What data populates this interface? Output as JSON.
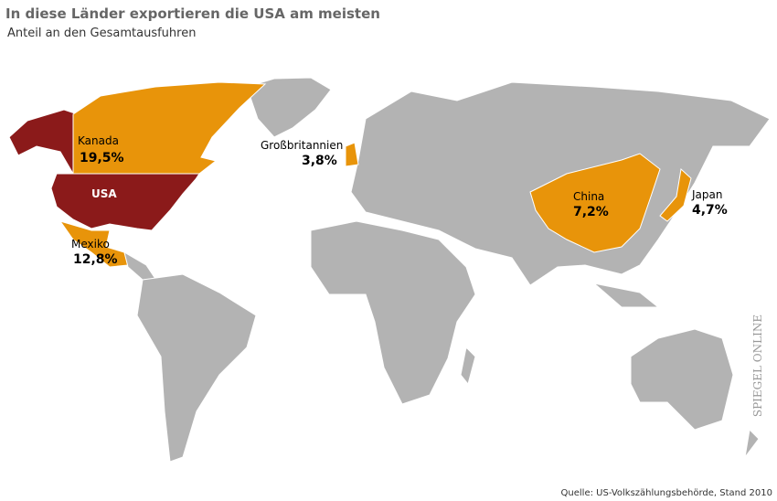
{
  "header": {
    "title": "In diese Länder exportieren die USA am meisten",
    "subtitle": "Anteil an den Gesamtausfuhren"
  },
  "countries": [
    {
      "name": "Kanada",
      "share": "19,5%"
    },
    {
      "name": "USA"
    },
    {
      "name": "Mexiko",
      "share": "12,8%"
    },
    {
      "name": "Großbritannien",
      "share": "3,8%"
    },
    {
      "name": "China",
      "share": "7,2%"
    },
    {
      "name": "Japan",
      "share": "4,7%"
    }
  ],
  "source": "Quelle: US-Volkszählungsbehörde, Stand 2010",
  "watermark": "SPIEGEL ONLINE"
}
